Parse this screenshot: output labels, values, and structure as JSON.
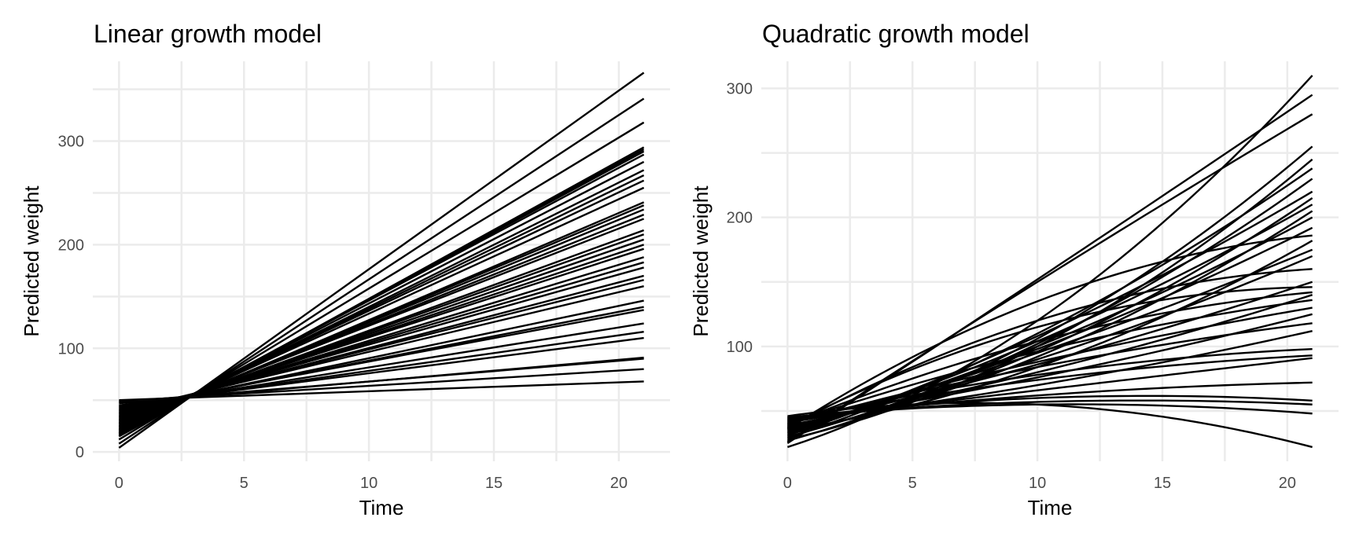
{
  "chart_data": [
    {
      "type": "line",
      "title": "Linear growth model",
      "xlabel": "Time",
      "ylabel": "Predicted weight",
      "xlim": [
        -1.05,
        22.05
      ],
      "ylim": [
        -9,
        377
      ],
      "xticks": [
        0,
        5,
        10,
        15,
        20
      ],
      "yticks": [
        0,
        100,
        200,
        300
      ],
      "x_range": [
        0,
        21
      ],
      "grid": true,
      "legend": "none",
      "model": "linear",
      "series": [
        {
          "values_at_x0_and_x21": [
            50,
            68
          ]
        },
        {
          "values_at_x0_and_x21": [
            49,
            80
          ]
        },
        {
          "values_at_x0_and_x21": [
            48,
            90
          ]
        },
        {
          "values_at_x0_and_x21": [
            47,
            91
          ]
        },
        {
          "values_at_x0_and_x21": [
            45,
            110
          ]
        },
        {
          "values_at_x0_and_x21": [
            44,
            116
          ]
        },
        {
          "values_at_x0_and_x21": [
            43,
            124
          ]
        },
        {
          "values_at_x0_and_x21": [
            42,
            137
          ]
        },
        {
          "values_at_x0_and_x21": [
            41,
            140
          ]
        },
        {
          "values_at_x0_and_x21": [
            40,
            146
          ]
        },
        {
          "values_at_x0_and_x21": [
            39,
            160
          ]
        },
        {
          "values_at_x0_and_x21": [
            38,
            166
          ]
        },
        {
          "values_at_x0_and_x21": [
            37,
            170
          ]
        },
        {
          "values_at_x0_and_x21": [
            36,
            178
          ]
        },
        {
          "values_at_x0_and_x21": [
            35,
            183
          ]
        },
        {
          "values_at_x0_and_x21": [
            34,
            188
          ]
        },
        {
          "values_at_x0_and_x21": [
            33,
            196
          ]
        },
        {
          "values_at_x0_and_x21": [
            32,
            200
          ]
        },
        {
          "values_at_x0_and_x21": [
            31,
            205
          ]
        },
        {
          "values_at_x0_and_x21": [
            30,
            210
          ]
        },
        {
          "values_at_x0_and_x21": [
            29,
            214
          ]
        },
        {
          "values_at_x0_and_x21": [
            28,
            225
          ]
        },
        {
          "values_at_x0_and_x21": [
            27,
            229
          ]
        },
        {
          "values_at_x0_and_x21": [
            26,
            234
          ]
        },
        {
          "values_at_x0_and_x21": [
            25,
            238
          ]
        },
        {
          "values_at_x0_and_x21": [
            24,
            241
          ]
        },
        {
          "values_at_x0_and_x21": [
            23,
            255
          ]
        },
        {
          "values_at_x0_and_x21": [
            22,
            262
          ]
        },
        {
          "values_at_x0_and_x21": [
            21,
            267
          ]
        },
        {
          "values_at_x0_and_x21": [
            20,
            272
          ]
        },
        {
          "values_at_x0_and_x21": [
            19,
            280
          ]
        },
        {
          "values_at_x0_and_x21": [
            18,
            287
          ]
        },
        {
          "values_at_x0_and_x21": [
            17,
            290
          ]
        },
        {
          "values_at_x0_and_x21": [
            16,
            292
          ]
        },
        {
          "values_at_x0_and_x21": [
            15,
            294
          ]
        },
        {
          "values_at_x0_and_x21": [
            12,
            318
          ]
        },
        {
          "values_at_x0_and_x21": [
            8,
            341
          ]
        },
        {
          "values_at_x0_and_x21": [
            4,
            366
          ]
        }
      ]
    },
    {
      "type": "line",
      "title": "Quadratic growth model",
      "xlabel": "Time",
      "ylabel": "Predicted weight",
      "xlim": [
        -1.05,
        22.05
      ],
      "ylim": [
        11,
        321
      ],
      "xticks": [
        0,
        5,
        10,
        15,
        20
      ],
      "yticks": [
        100,
        200,
        300
      ],
      "x_range": [
        0,
        21
      ],
      "grid": true,
      "legend": "none",
      "model": "quadratic",
      "series": [
        {
          "values_at_x0_x10_x21": [
            46,
            55,
            22
          ]
        },
        {
          "values_at_x0_x10_x21": [
            45,
            55,
            48
          ]
        },
        {
          "values_at_x0_x10_x21": [
            45,
            57,
            55
          ]
        },
        {
          "values_at_x0_x10_x21": [
            44,
            60,
            58
          ]
        },
        {
          "values_at_x0_x10_x21": [
            44,
            62,
            72
          ]
        },
        {
          "values_at_x0_x10_x21": [
            43,
            66,
            91
          ]
        },
        {
          "values_at_x0_x10_x21": [
            43,
            74,
            93
          ]
        },
        {
          "values_at_x0_x10_x21": [
            42,
            78,
            98
          ]
        },
        {
          "values_at_x0_x10_x21": [
            42,
            70,
            112
          ]
        },
        {
          "values_at_x0_x10_x21": [
            41,
            84,
            118
          ]
        },
        {
          "values_at_x0_x10_x21": [
            41,
            76,
            125
          ]
        },
        {
          "values_at_x0_x10_x21": [
            40,
            88,
            130
          ]
        },
        {
          "values_at_x0_x10_x21": [
            40,
            96,
            136
          ]
        },
        {
          "values_at_x0_x10_x21": [
            39,
            80,
            140
          ]
        },
        {
          "values_at_x0_x10_x21": [
            39,
            104,
            142
          ]
        },
        {
          "values_at_x0_x10_x21": [
            38,
            115,
            146
          ]
        },
        {
          "values_at_x0_x10_x21": [
            38,
            86,
            150
          ]
        },
        {
          "values_at_x0_x10_x21": [
            37,
            120,
            160
          ]
        },
        {
          "values_at_x0_x10_x21": [
            37,
            90,
            170
          ]
        },
        {
          "values_at_x0_x10_x21": [
            36,
            135,
            186
          ]
        },
        {
          "values_at_x0_x10_x21": [
            36,
            95,
            175
          ]
        },
        {
          "values_at_x0_x10_x21": [
            35,
            84,
            182
          ]
        },
        {
          "values_at_x0_x10_x21": [
            35,
            98,
            192
          ]
        },
        {
          "values_at_x0_x10_x21": [
            34,
            100,
            200
          ]
        },
        {
          "values_at_x0_x10_x21": [
            33,
            92,
            205
          ]
        },
        {
          "values_at_x0_x10_x21": [
            33,
            104,
            210
          ]
        },
        {
          "values_at_x0_x10_x21": [
            32,
            96,
            215
          ]
        },
        {
          "values_at_x0_x10_x21": [
            31,
            108,
            220
          ]
        },
        {
          "values_at_x0_x10_x21": [
            30,
            102,
            230
          ]
        },
        {
          "values_at_x0_x10_x21": [
            29,
            110,
            238
          ]
        },
        {
          "values_at_x0_x10_x21": [
            28,
            100,
            245
          ]
        },
        {
          "values_at_x0_x10_x21": [
            27,
            106,
            255
          ]
        },
        {
          "values_at_x0_x10_x21": [
            26,
            150,
            280
          ]
        },
        {
          "values_at_x0_x10_x21": [
            25,
            152,
            295
          ]
        },
        {
          "values_at_x0_x10_x21": [
            22,
            120,
            310
          ]
        }
      ]
    }
  ]
}
